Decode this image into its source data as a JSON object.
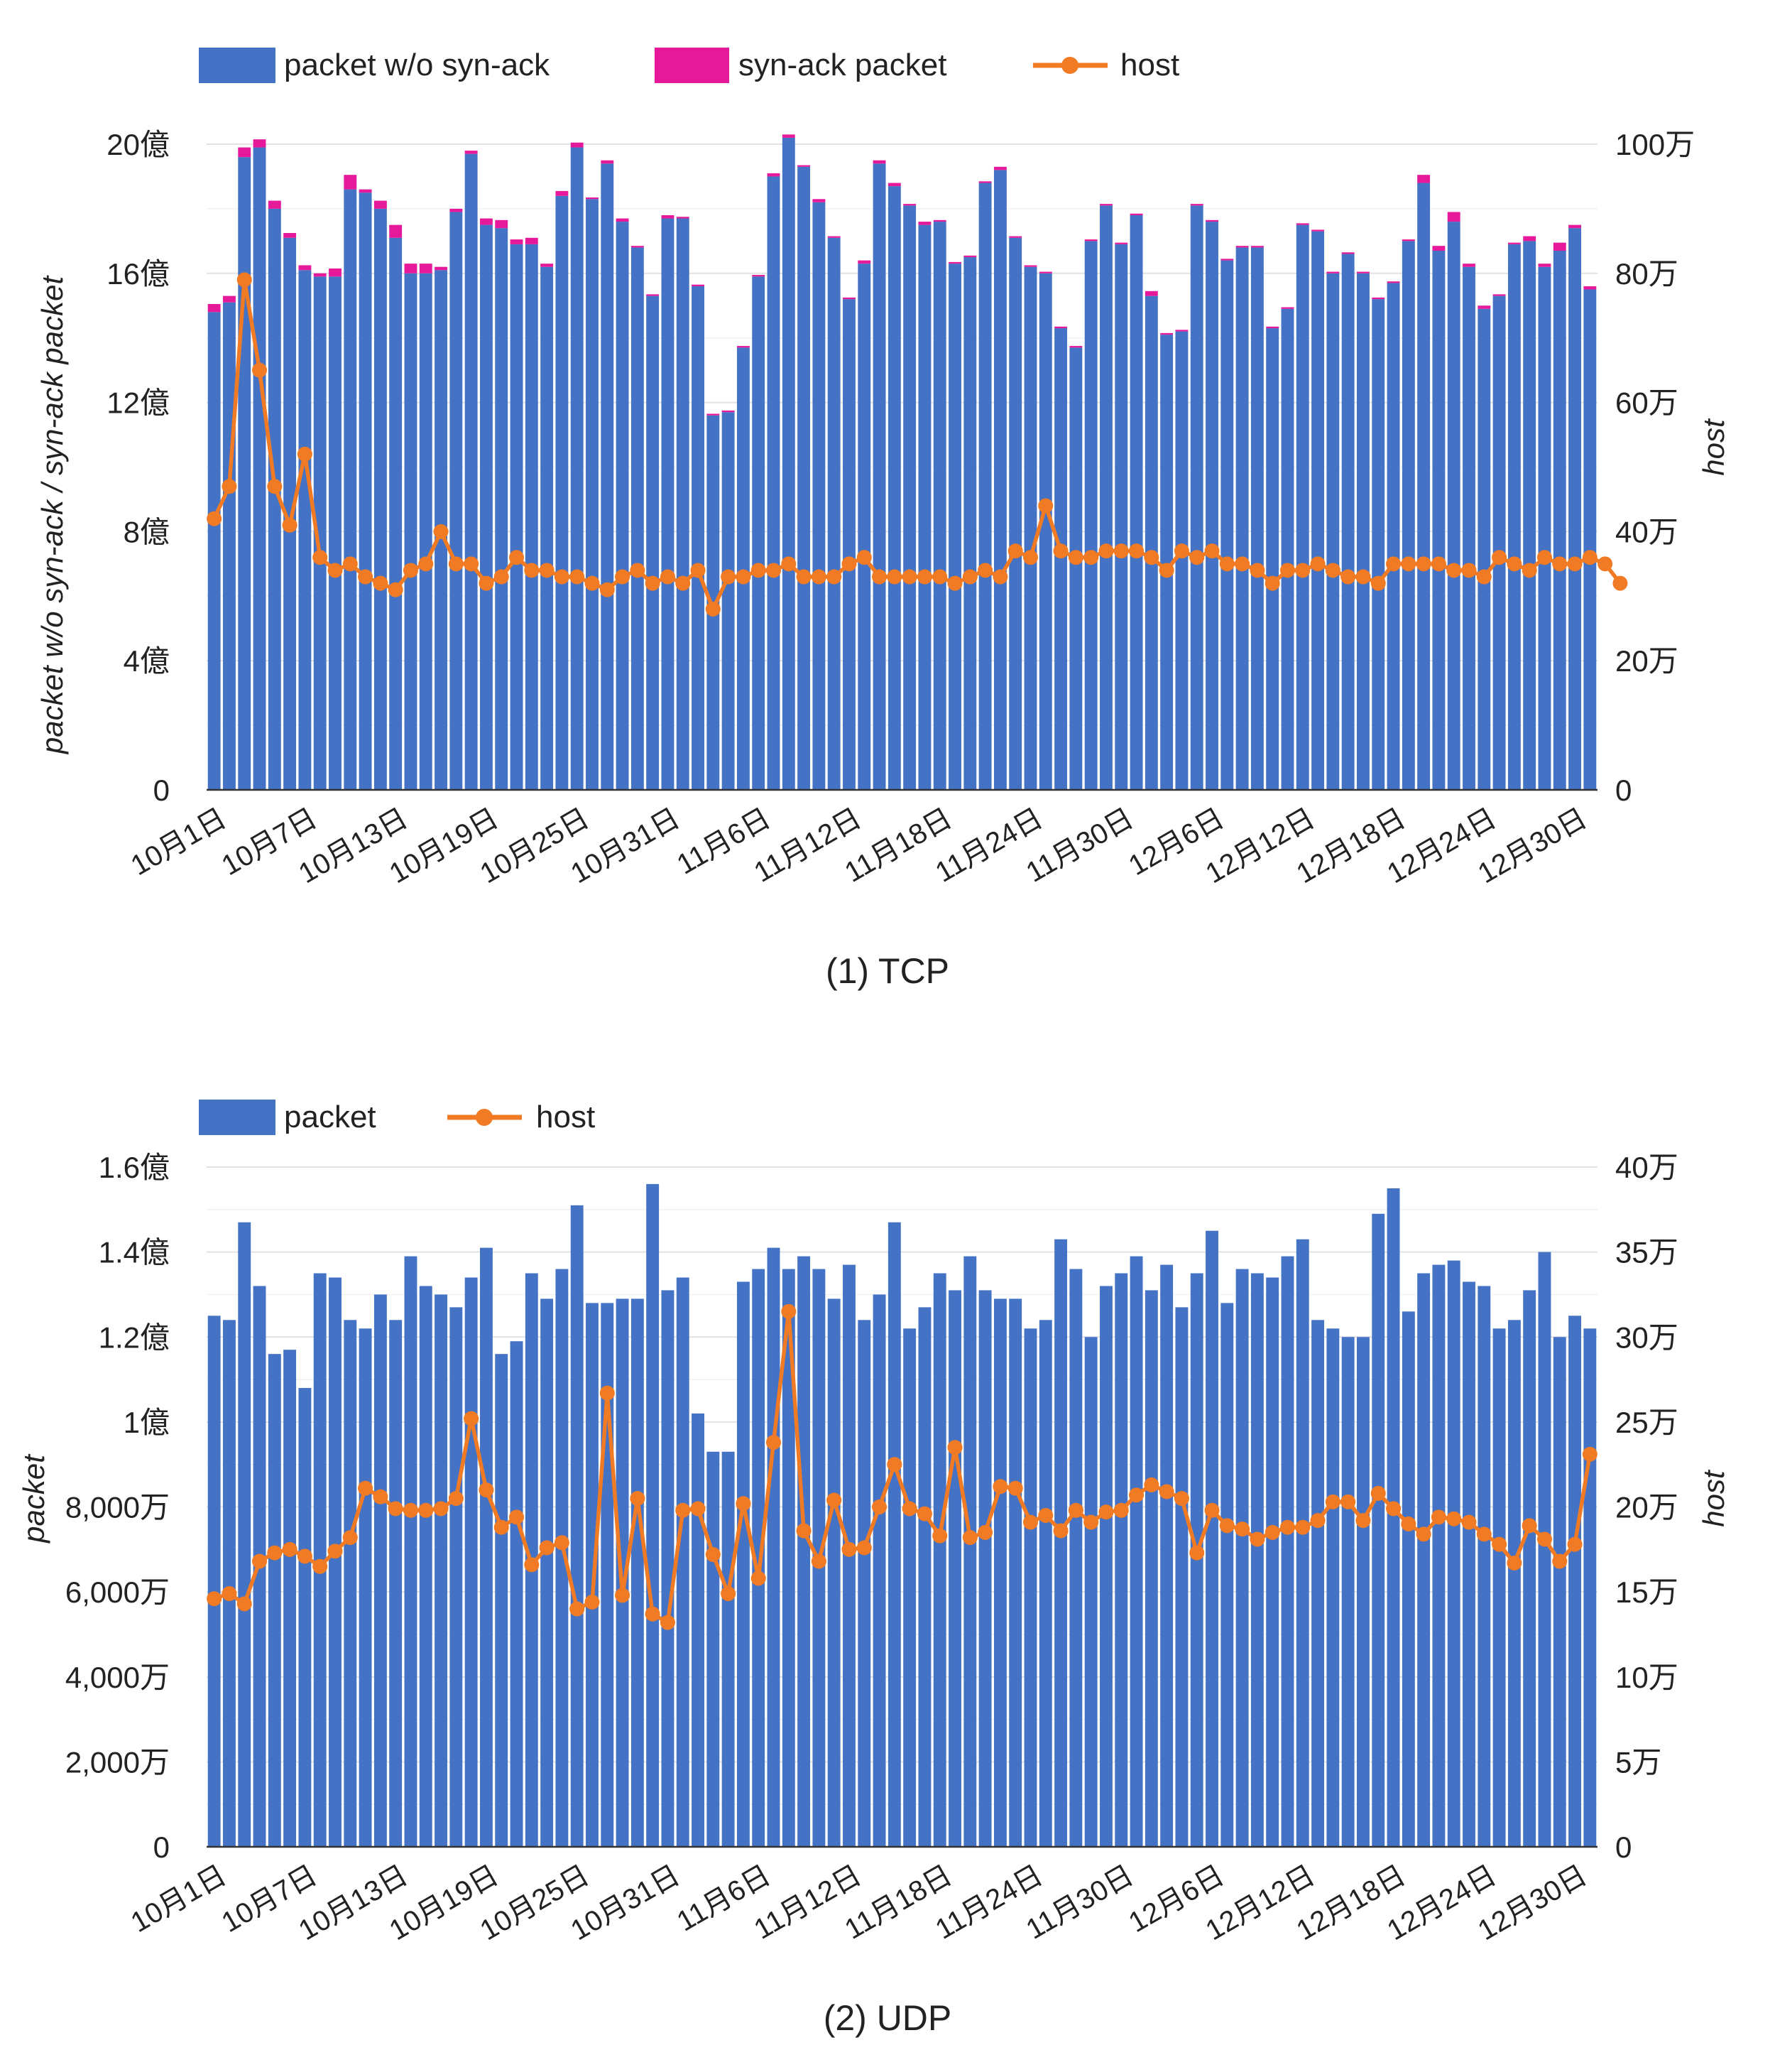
{
  "colors": {
    "blue": "#4472c4",
    "magenta": "#e6199b",
    "orange": "#f07b24",
    "text": "#222222"
  },
  "x_tick_labels": [
    "10月1日",
    "10月7日",
    "10月13日",
    "10月19日",
    "10月25日",
    "10月31日",
    "11月6日",
    "11月12日",
    "11月18日",
    "11月24日",
    "11月30日",
    "12月6日",
    "12月12日",
    "12月18日",
    "12月24日",
    "12月30日"
  ],
  "chart_data": [
    {
      "type": "bar",
      "panel": "tcp",
      "caption": "(1) TCP",
      "legend": [
        {
          "label": "packet w/o syn-ack",
          "kind": "bar",
          "color": "#4472c4"
        },
        {
          "label": "syn-ack packet",
          "kind": "bar",
          "color": "#e6199b"
        },
        {
          "label": "host",
          "kind": "line",
          "color": "#f07b24"
        }
      ],
      "ylabel_left": "packet w/o syn-ack / syn-ack packet",
      "ylabel_right": "host",
      "ylim_left": [
        0,
        2000000000
      ],
      "ylim_right": [
        0,
        1000000
      ],
      "left_ticks": [
        {
          "v": 0,
          "label": "0"
        },
        {
          "v": 400000000,
          "label": "4億"
        },
        {
          "v": 800000000,
          "label": "8億"
        },
        {
          "v": 1200000000,
          "label": "12億"
        },
        {
          "v": 1600000000,
          "label": "16億"
        },
        {
          "v": 2000000000,
          "label": "20億"
        }
      ],
      "right_ticks": [
        {
          "v": 0,
          "label": "0"
        },
        {
          "v": 200000,
          "label": "20万"
        },
        {
          "v": 400000,
          "label": "40万"
        },
        {
          "v": 600000,
          "label": "60万"
        },
        {
          "v": 800000,
          "label": "80万"
        },
        {
          "v": 1000000,
          "label": "100万"
        }
      ],
      "categories_start": "10月1日",
      "n_days": 92,
      "series": [
        {
          "name": "packet w/o syn-ack (億)",
          "values": [
            14.8,
            15.1,
            19.6,
            19.9,
            18.0,
            17.1,
            16.1,
            15.9,
            15.9,
            18.6,
            18.5,
            18.0,
            17.1,
            16.0,
            16.0,
            16.1,
            17.9,
            19.7,
            17.5,
            17.4,
            16.9,
            16.9,
            16.2,
            18.4,
            19.9,
            18.3,
            19.4,
            17.6,
            16.8,
            15.3,
            17.7,
            17.7,
            15.6,
            11.6,
            11.7,
            13.7,
            15.9,
            19.0,
            20.2,
            19.3,
            18.2,
            17.1,
            15.2,
            16.3,
            19.4,
            18.7,
            18.1,
            17.5,
            17.6,
            16.3,
            16.5,
            18.8,
            19.2,
            17.1,
            16.2,
            16.0,
            14.3,
            13.7,
            17.0,
            18.1,
            16.9,
            17.8,
            15.3,
            14.1,
            14.2,
            18.1,
            17.6,
            16.4,
            16.8,
            16.8,
            14.3,
            14.9,
            17.5,
            17.3,
            16.0,
            16.6,
            16.0,
            15.2,
            15.7,
            17.0,
            18.8,
            16.7,
            17.6,
            16.2,
            14.9,
            15.3,
            16.9,
            17.0,
            16.2,
            16.7,
            17.4,
            15.5
          ]
        },
        {
          "name": "syn-ack packet (億)",
          "values": [
            0.25,
            0.2,
            0.3,
            0.25,
            0.25,
            0.15,
            0.15,
            0.1,
            0.25,
            0.45,
            0.1,
            0.25,
            0.4,
            0.3,
            0.3,
            0.1,
            0.1,
            0.1,
            0.2,
            0.25,
            0.15,
            0.2,
            0.1,
            0.15,
            0.15,
            0.05,
            0.1,
            0.1,
            0.05,
            0.05,
            0.1,
            0.05,
            0.05,
            0.05,
            0.05,
            0.05,
            0.05,
            0.1,
            0.1,
            0.05,
            0.1,
            0.05,
            0.05,
            0.1,
            0.1,
            0.1,
            0.05,
            0.1,
            0.05,
            0.05,
            0.05,
            0.05,
            0.1,
            0.05,
            0.05,
            0.05,
            0.05,
            0.05,
            0.05,
            0.05,
            0.05,
            0.05,
            0.15,
            0.05,
            0.05,
            0.05,
            0.05,
            0.05,
            0.05,
            0.05,
            0.05,
            0.05,
            0.05,
            0.05,
            0.05,
            0.05,
            0.05,
            0.05,
            0.05,
            0.05,
            0.25,
            0.15,
            0.3,
            0.1,
            0.1,
            0.05,
            0.05,
            0.15,
            0.1,
            0.25,
            0.1,
            0.1
          ]
        },
        {
          "name": "host (万)",
          "values": [
            42,
            47,
            79,
            65,
            47,
            41,
            52,
            36,
            34,
            35,
            33,
            32,
            31,
            34,
            35,
            40,
            35,
            35,
            32,
            33,
            36,
            34,
            34,
            33,
            33,
            32,
            31,
            33,
            34,
            32,
            33,
            32,
            34,
            28,
            33,
            33,
            34,
            34,
            35,
            33,
            33,
            33,
            35,
            36,
            33,
            33,
            33,
            33,
            33,
            32,
            33,
            34,
            33,
            37,
            36,
            44,
            37,
            36,
            36,
            37,
            37,
            37,
            36,
            34,
            37,
            36,
            37,
            35,
            35,
            34,
            32,
            34,
            34,
            35,
            34,
            33,
            33,
            32,
            35,
            35,
            35,
            35,
            34,
            34,
            33,
            36,
            35,
            34,
            36,
            35,
            35,
            36,
            35,
            32
          ]
        }
      ]
    },
    {
      "type": "bar",
      "panel": "udp",
      "caption": "(2) UDP",
      "legend": [
        {
          "label": "packet",
          "kind": "bar",
          "color": "#4472c4"
        },
        {
          "label": "host",
          "kind": "line",
          "color": "#f07b24"
        }
      ],
      "ylabel_left": "packet",
      "ylabel_right": "host",
      "ylim_left": [
        0,
        160000000
      ],
      "ylim_right": [
        0,
        400000
      ],
      "left_ticks": [
        {
          "v": 0,
          "label": "0"
        },
        {
          "v": 20000000,
          "label": "2,000万"
        },
        {
          "v": 40000000,
          "label": "4,000万"
        },
        {
          "v": 60000000,
          "label": "6,000万"
        },
        {
          "v": 80000000,
          "label": "8,000万"
        },
        {
          "v": 100000000,
          "label": "1億"
        },
        {
          "v": 120000000,
          "label": "1.2億"
        },
        {
          "v": 140000000,
          "label": "1.4億"
        },
        {
          "v": 160000000,
          "label": "1.6億"
        }
      ],
      "right_ticks": [
        {
          "v": 0,
          "label": "0"
        },
        {
          "v": 50000,
          "label": "5万"
        },
        {
          "v": 100000,
          "label": "10万"
        },
        {
          "v": 150000,
          "label": "15万"
        },
        {
          "v": 200000,
          "label": "20万"
        },
        {
          "v": 250000,
          "label": "25万"
        },
        {
          "v": 300000,
          "label": "30万"
        },
        {
          "v": 350000,
          "label": "35万"
        },
        {
          "v": 400000,
          "label": "40万"
        }
      ],
      "categories_start": "10月1日",
      "n_days": 92,
      "series": [
        {
          "name": "packet (億)",
          "values": [
            1.25,
            1.24,
            1.47,
            1.32,
            1.16,
            1.17,
            1.08,
            1.35,
            1.34,
            1.24,
            1.22,
            1.3,
            1.24,
            1.39,
            1.32,
            1.3,
            1.27,
            1.34,
            1.41,
            1.16,
            1.19,
            1.35,
            1.29,
            1.36,
            1.51,
            1.28,
            1.28,
            1.29,
            1.29,
            1.56,
            1.31,
            1.34,
            1.02,
            0.93,
            0.93,
            1.33,
            1.36,
            1.41,
            1.36,
            1.39,
            1.36,
            1.29,
            1.37,
            1.24,
            1.3,
            1.47,
            1.22,
            1.27,
            1.35,
            1.31,
            1.39,
            1.31,
            1.29,
            1.29,
            1.22,
            1.24,
            1.43,
            1.36,
            1.2,
            1.32,
            1.35,
            1.39,
            1.31,
            1.37,
            1.27,
            1.35,
            1.45,
            1.28,
            1.36,
            1.35,
            1.34,
            1.39,
            1.43,
            1.24,
            1.22,
            1.2,
            1.2,
            1.49,
            1.55,
            1.26,
            1.35,
            1.37,
            1.38,
            1.33,
            1.32,
            1.22,
            1.24,
            1.31,
            1.4,
            1.2,
            1.25,
            1.22
          ]
        },
        {
          "name": "host (万)",
          "values": [
            14.6,
            14.9,
            14.3,
            16.8,
            17.3,
            17.5,
            17.1,
            16.5,
            17.4,
            18.2,
            21.1,
            20.6,
            19.9,
            19.8,
            19.8,
            19.9,
            20.5,
            25.2,
            21,
            18.8,
            19.4,
            16.6,
            17.6,
            17.9,
            14,
            14.4,
            26.7,
            14.8,
            20.5,
            13.7,
            13.2,
            19.8,
            19.9,
            17.2,
            14.9,
            20.2,
            15.8,
            23.8,
            31.5,
            18.6,
            16.8,
            20.4,
            17.5,
            17.6,
            20,
            22.5,
            19.9,
            19.6,
            18.3,
            23.5,
            18.2,
            18.5,
            21.2,
            21.1,
            19.1,
            19.5,
            18.6,
            19.8,
            19.1,
            19.7,
            19.8,
            20.7,
            21.3,
            20.9,
            20.5,
            17.3,
            19.8,
            18.9,
            18.7,
            18.1,
            18.5,
            18.8,
            18.8,
            19.2,
            20.3,
            20.3,
            19.2,
            20.8,
            19.9,
            19,
            18.4,
            19.4,
            19.3,
            19.1,
            18.4,
            17.8,
            16.7,
            18.9,
            18.1,
            16.8,
            17.8,
            23.1
          ]
        }
      ]
    }
  ]
}
